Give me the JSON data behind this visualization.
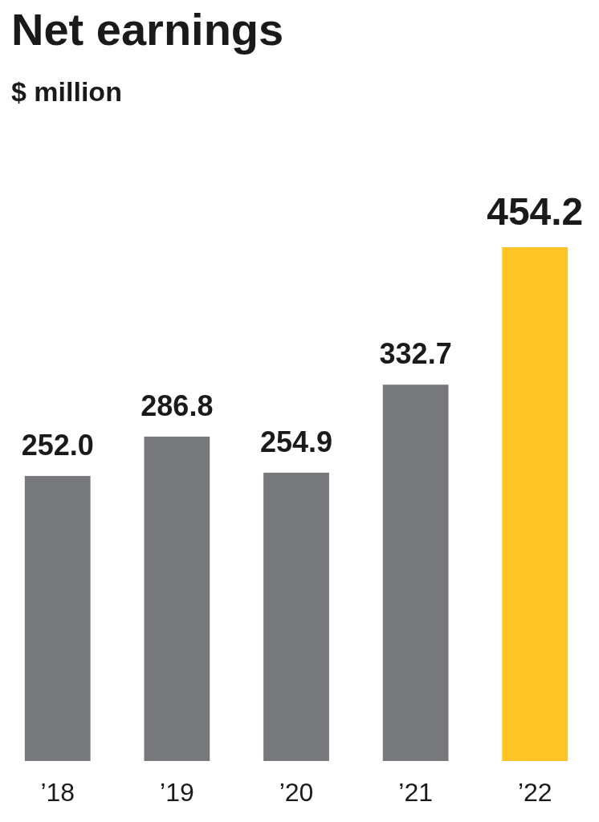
{
  "chart_data": {
    "type": "bar",
    "title": "Net earnings",
    "subtitle": "$ million",
    "categories": [
      "’18",
      "’19",
      "’20",
      "’21",
      "’22"
    ],
    "values": [
      252.0,
      286.8,
      254.9,
      332.7,
      454.2
    ],
    "colors": [
      "#77787b",
      "#77787b",
      "#77787b",
      "#77787b",
      "#fec325"
    ],
    "value_labels": [
      "252.0",
      "286.8",
      "254.9",
      "332.7",
      "454.2"
    ]
  }
}
